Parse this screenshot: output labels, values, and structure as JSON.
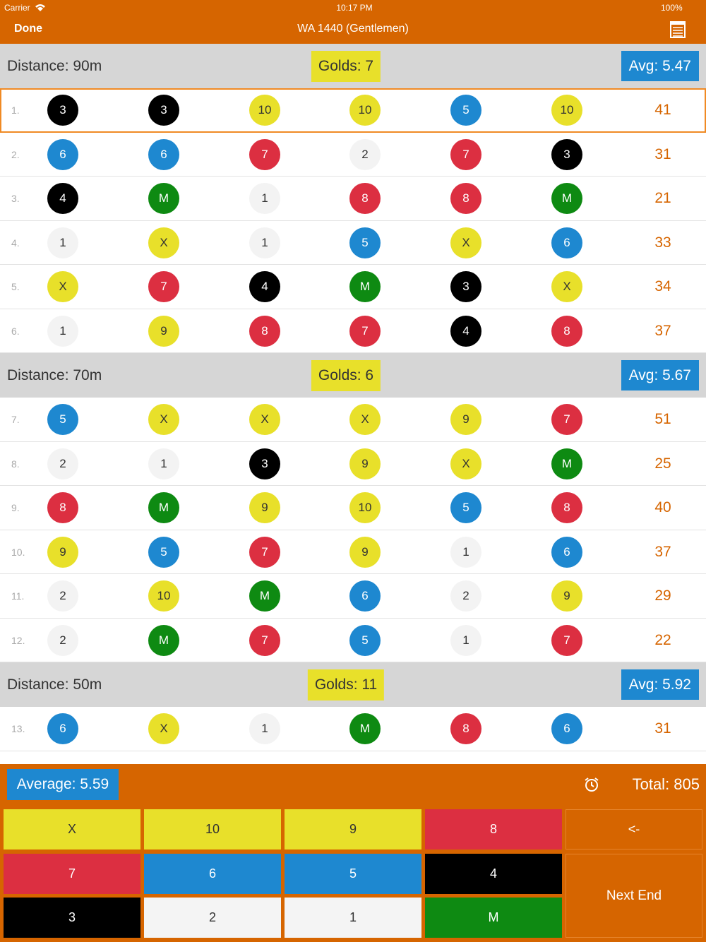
{
  "status": {
    "carrier": "Carrier",
    "time": "10:17 PM",
    "battery": "100%"
  },
  "nav": {
    "done": "Done",
    "title": "WA 1440 (Gentlemen)"
  },
  "sections": [
    {
      "distance": "Distance: 90m",
      "golds": "Golds: 7",
      "avg": "Avg: 5.47",
      "rows": [
        {
          "num": "1.",
          "arrows": [
            "3",
            "3",
            "10",
            "10",
            "5",
            "10"
          ],
          "total": "41"
        },
        {
          "num": "2.",
          "arrows": [
            "6",
            "6",
            "7",
            "2",
            "7",
            "3"
          ],
          "total": "31"
        },
        {
          "num": "3.",
          "arrows": [
            "4",
            "M",
            "1",
            "8",
            "8",
            "M"
          ],
          "total": "21"
        },
        {
          "num": "4.",
          "arrows": [
            "1",
            "X",
            "1",
            "5",
            "X",
            "6"
          ],
          "total": "33"
        },
        {
          "num": "5.",
          "arrows": [
            "X",
            "7",
            "4",
            "M",
            "3",
            "X"
          ],
          "total": "34"
        },
        {
          "num": "6.",
          "arrows": [
            "1",
            "9",
            "8",
            "7",
            "4",
            "8"
          ],
          "total": "37"
        }
      ]
    },
    {
      "distance": "Distance: 70m",
      "golds": "Golds: 6",
      "avg": "Avg: 5.67",
      "rows": [
        {
          "num": "7.",
          "arrows": [
            "5",
            "X",
            "X",
            "X",
            "9",
            "7"
          ],
          "total": "51"
        },
        {
          "num": "8.",
          "arrows": [
            "2",
            "1",
            "3",
            "9",
            "X",
            "M"
          ],
          "total": "25"
        },
        {
          "num": "9.",
          "arrows": [
            "8",
            "M",
            "9",
            "10",
            "5",
            "8"
          ],
          "total": "40"
        },
        {
          "num": "10.",
          "arrows": [
            "9",
            "5",
            "7",
            "9",
            "1",
            "6"
          ],
          "total": "37"
        },
        {
          "num": "11.",
          "arrows": [
            "2",
            "10",
            "M",
            "6",
            "2",
            "9"
          ],
          "total": "29"
        },
        {
          "num": "12.",
          "arrows": [
            "2",
            "M",
            "7",
            "5",
            "1",
            "7"
          ],
          "total": "22"
        }
      ]
    },
    {
      "distance": "Distance: 50m",
      "golds": "Golds: 11",
      "avg": "Avg: 5.92",
      "rows": [
        {
          "num": "13.",
          "arrows": [
            "6",
            "X",
            "1",
            "M",
            "8",
            "6"
          ],
          "total": "31"
        }
      ]
    }
  ],
  "footer": {
    "average": "Average: 5.59",
    "total": "Total: 805"
  },
  "keypad": {
    "rows": [
      [
        {
          "label": "X",
          "color": "#e8e02a",
          "text": "#333"
        },
        {
          "label": "10",
          "color": "#e8e02a",
          "text": "#333"
        },
        {
          "label": "9",
          "color": "#e8e02a",
          "text": "#333"
        },
        {
          "label": "8",
          "color": "#dc2f41",
          "text": "#fff"
        }
      ],
      [
        {
          "label": "7",
          "color": "#dc2f41",
          "text": "#fff"
        },
        {
          "label": "6",
          "color": "#1e88d0",
          "text": "#fff"
        },
        {
          "label": "5",
          "color": "#1e88d0",
          "text": "#fff"
        },
        {
          "label": "4",
          "color": "#000000",
          "text": "#fff"
        }
      ],
      [
        {
          "label": "3",
          "color": "#000000",
          "text": "#fff"
        },
        {
          "label": "2",
          "color": "#f4f4f4",
          "text": "#333"
        },
        {
          "label": "1",
          "color": "#f4f4f4",
          "text": "#333"
        },
        {
          "label": "M",
          "color": "#0e8a12",
          "text": "#fff"
        }
      ]
    ],
    "back": "<-",
    "next": "Next End"
  }
}
